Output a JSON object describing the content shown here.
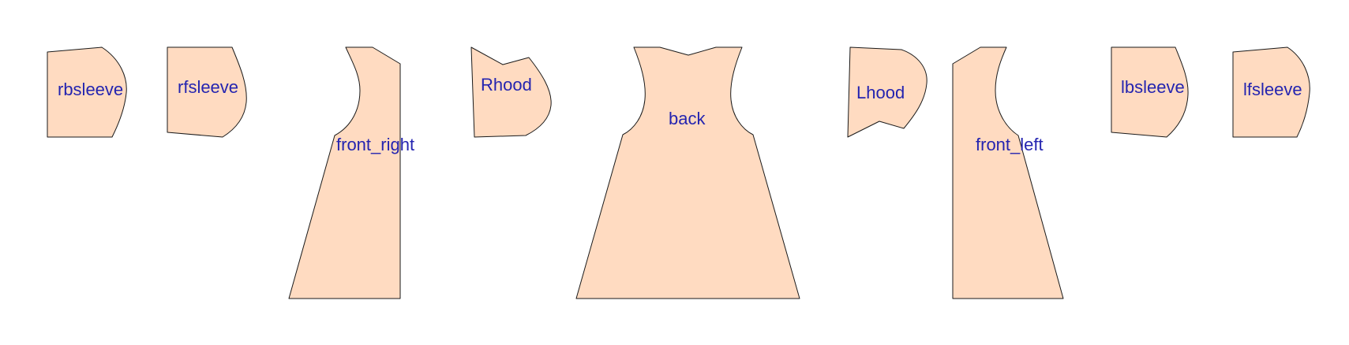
{
  "pieces": [
    {
      "id": "rbsleeve",
      "label": "rbsleeve"
    },
    {
      "id": "rfsleeve",
      "label": "rfsleeve"
    },
    {
      "id": "front-right",
      "label": "front_right"
    },
    {
      "id": "rhood",
      "label": "Rhood"
    },
    {
      "id": "back",
      "label": "back"
    },
    {
      "id": "lhood",
      "label": "Lhood"
    },
    {
      "id": "front-left",
      "label": "front_left"
    },
    {
      "id": "lbsleeve",
      "label": "lbsleeve"
    },
    {
      "id": "lfsleeve",
      "label": "lfsleeve"
    }
  ],
  "colors": {
    "piece_fill": "#ffdbc1",
    "outline": "#1a1a1a",
    "label": "#2424b0"
  }
}
